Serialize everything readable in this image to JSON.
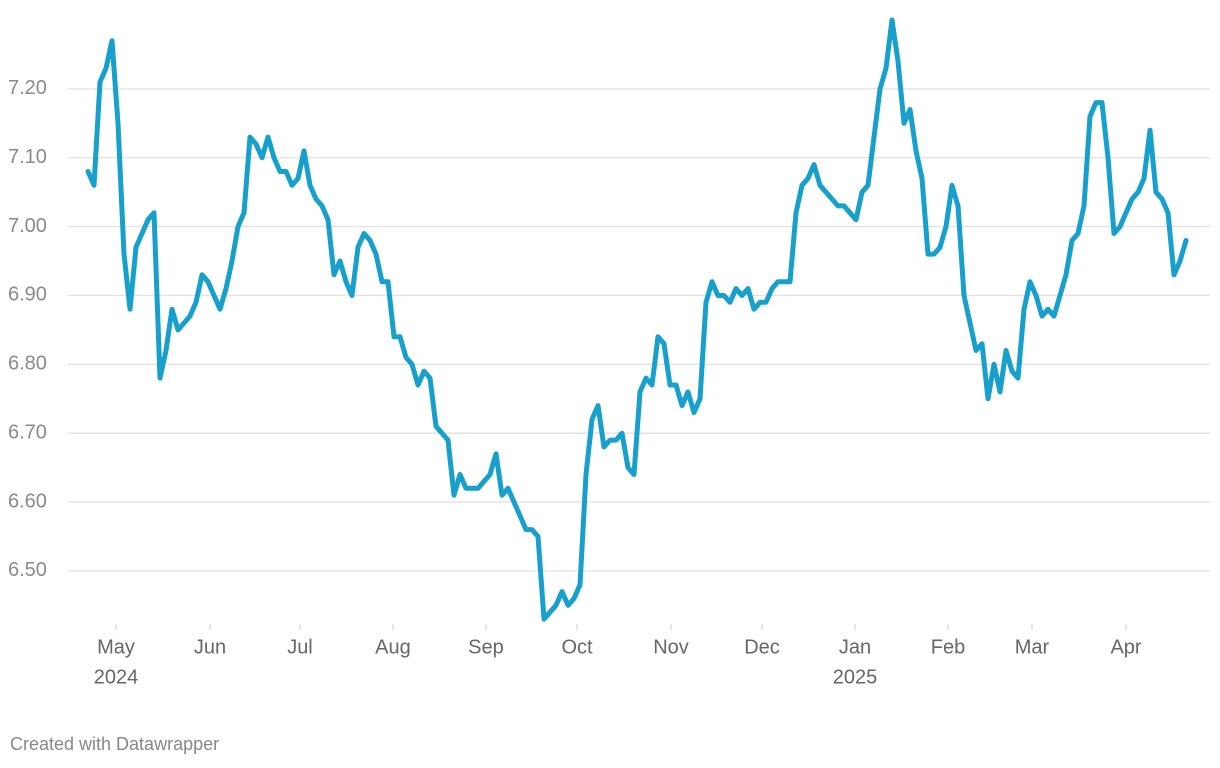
{
  "chart_data": {
    "type": "line",
    "color": "#18a0cd",
    "grid": true,
    "credit": "Created with Datawrapper",
    "ylim": [
      6.42,
      7.3
    ],
    "yticks": [
      {
        "value": 6.5,
        "label": "6.50"
      },
      {
        "value": 6.6,
        "label": "6.60"
      },
      {
        "value": 6.7,
        "label": "6.70"
      },
      {
        "value": 6.8,
        "label": "6.80"
      },
      {
        "value": 6.9,
        "label": "6.90"
      },
      {
        "value": 7.0,
        "label": "7.00"
      },
      {
        "value": 7.1,
        "label": "7.10"
      },
      {
        "value": 7.2,
        "label": "7.20"
      }
    ],
    "xticks": [
      {
        "value": 4.67,
        "label": "May"
      },
      {
        "value": 20.33,
        "label": "Jun"
      },
      {
        "value": 35.33,
        "label": "Jul"
      },
      {
        "value": 50.83,
        "label": "Aug"
      },
      {
        "value": 66.33,
        "label": "Sep"
      },
      {
        "value": 81.5,
        "label": "Oct"
      },
      {
        "value": 97.17,
        "label": "Nov"
      },
      {
        "value": 112.33,
        "label": "Dec"
      },
      {
        "value": 127.83,
        "label": "Jan"
      },
      {
        "value": 143.33,
        "label": "Feb"
      },
      {
        "value": 157.33,
        "label": "Mar"
      },
      {
        "value": 173,
        "label": "Apr"
      }
    ],
    "xtick_years": [
      {
        "value": 4.67,
        "label": "2024"
      },
      {
        "value": 127.83,
        "label": "2025"
      }
    ],
    "categories": [
      null,
      null,
      null,
      null,
      null,
      null,
      null,
      null,
      null,
      null,
      null,
      null,
      null,
      null,
      null,
      null,
      null,
      null,
      null,
      null,
      null,
      null,
      null,
      null,
      null,
      null,
      null,
      null,
      null,
      null,
      null,
      null,
      null,
      null,
      null,
      null,
      null,
      null,
      null,
      null,
      null,
      null,
      null,
      null,
      null,
      null,
      null,
      null,
      null,
      null,
      null,
      null,
      null,
      null,
      null,
      null,
      null,
      null,
      null,
      null,
      null,
      null,
      null,
      null,
      null,
      null,
      null,
      null,
      null,
      null,
      null,
      null,
      null,
      null,
      null,
      null,
      null,
      null,
      null,
      null,
      null,
      null,
      null,
      null,
      null,
      null,
      null,
      null,
      null,
      null,
      null,
      null,
      null,
      null,
      null,
      null,
      null,
      null,
      null,
      null,
      null,
      null,
      null,
      null,
      null,
      null,
      null,
      null,
      null,
      null,
      null,
      null,
      null,
      null,
      null,
      null,
      null,
      null,
      null,
      null,
      null,
      null,
      null,
      null,
      null,
      null,
      null,
      null,
      null,
      null,
      null,
      null,
      null,
      null,
      null,
      null,
      null,
      null,
      null,
      null,
      null,
      null,
      null,
      null,
      null,
      null,
      null,
      null,
      null,
      null,
      null,
      null,
      null,
      null,
      null,
      null,
      null,
      null,
      null,
      null,
      null,
      null,
      null,
      null,
      null,
      null,
      null,
      null,
      null,
      null,
      null,
      null,
      null,
      null,
      null,
      null,
      null,
      null,
      null,
      null,
      null,
      null,
      null,
      null
    ],
    "values": [
      7.08,
      7.06,
      7.21,
      7.23,
      7.27,
      7.15,
      6.96,
      6.88,
      6.97,
      6.99,
      7.01,
      7.02,
      6.78,
      6.82,
      6.88,
      6.85,
      6.86,
      6.87,
      6.89,
      6.93,
      6.92,
      6.9,
      6.88,
      6.91,
      6.95,
      7.0,
      7.02,
      7.13,
      7.12,
      7.1,
      7.13,
      7.1,
      7.08,
      7.08,
      7.06,
      7.07,
      7.11,
      7.06,
      7.04,
      7.03,
      7.01,
      6.93,
      6.95,
      6.92,
      6.9,
      6.97,
      6.99,
      6.98,
      6.96,
      6.92,
      6.92,
      6.84,
      6.84,
      6.81,
      6.8,
      6.77,
      6.79,
      6.78,
      6.71,
      6.7,
      6.69,
      6.61,
      6.64,
      6.62,
      6.62,
      6.62,
      6.63,
      6.64,
      6.67,
      6.61,
      6.62,
      6.6,
      6.58,
      6.56,
      6.56,
      6.55,
      6.43,
      6.44,
      6.45,
      6.47,
      6.45,
      6.46,
      6.48,
      6.64,
      6.72,
      6.74,
      6.68,
      6.69,
      6.69,
      6.7,
      6.65,
      6.64,
      6.76,
      6.78,
      6.77,
      6.84,
      6.83,
      6.77,
      6.77,
      6.74,
      6.76,
      6.73,
      6.75,
      6.89,
      6.92,
      6.9,
      6.9,
      6.89,
      6.91,
      6.9,
      6.91,
      6.88,
      6.89,
      6.89,
      6.91,
      6.92,
      6.92,
      6.92,
      7.02,
      7.06,
      7.07,
      7.09,
      7.06,
      7.05,
      7.04,
      7.03,
      7.03,
      7.02,
      7.01,
      7.05,
      7.06,
      7.13,
      7.2,
      7.23,
      7.3,
      7.24,
      7.15,
      7.17,
      7.11,
      7.07,
      6.96,
      6.96,
      6.97,
      7.0,
      7.06,
      7.03,
      6.9,
      6.86,
      6.82,
      6.83,
      6.75,
      6.8,
      6.76,
      6.82,
      6.79,
      6.78,
      6.88,
      6.92,
      6.9,
      6.87,
      6.88,
      6.87,
      6.9,
      6.93,
      6.98,
      6.99,
      7.03,
      7.16,
      7.18,
      7.18,
      7.1,
      6.99,
      7.0,
      7.02,
      7.04,
      7.05,
      7.07,
      7.14,
      7.05,
      7.04,
      7.02,
      6.93,
      6.95,
      6.98
    ]
  }
}
